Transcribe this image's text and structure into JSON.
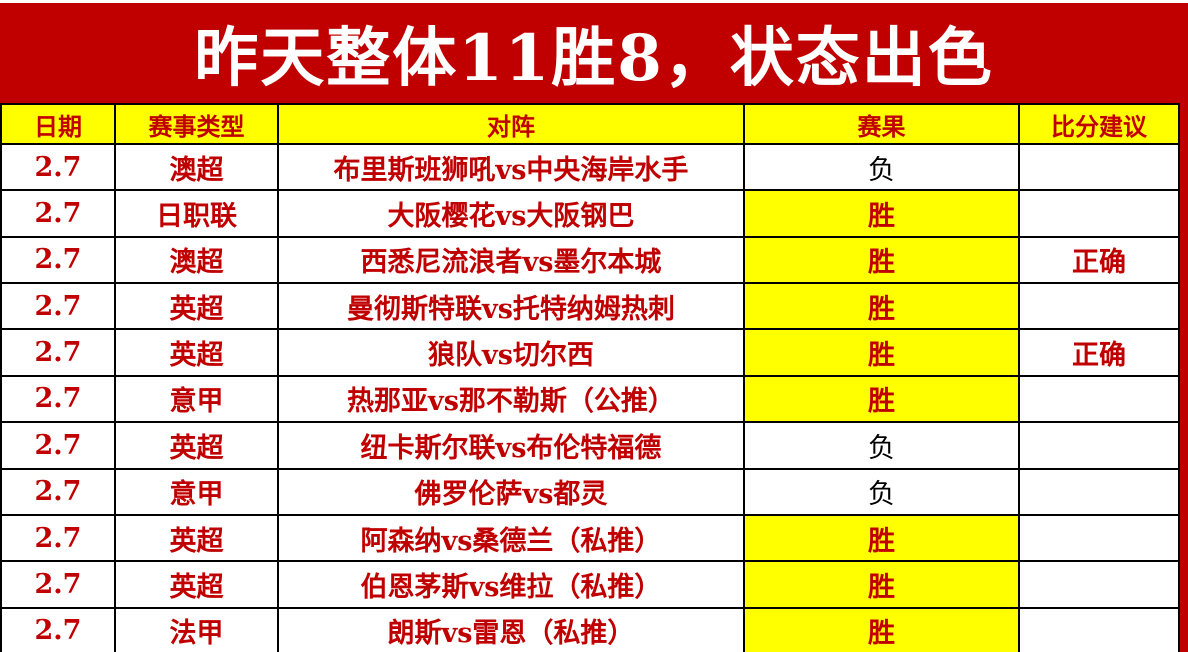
{
  "title": "昨天整体11胜8，状态出色",
  "colors": {
    "banner_red": "#c00000",
    "highlight_yellow": "#ffff00",
    "win_text": "#c00000",
    "loss_text": "#000000",
    "title_text": "#ffffff"
  },
  "table": {
    "columns": {
      "date": "日期",
      "league": "赛事类型",
      "matchup": "对阵",
      "result": "赛果",
      "suggestion": "比分建议"
    },
    "rows": [
      {
        "date": "2.7",
        "league": "澳超",
        "matchup": "布里斯班狮吼vs中央海岸水手",
        "result": "负",
        "win": false,
        "suggestion": ""
      },
      {
        "date": "2.7",
        "league": "日职联",
        "matchup": "大阪樱花vs大阪钢巴",
        "result": "胜",
        "win": true,
        "suggestion": ""
      },
      {
        "date": "2.7",
        "league": "澳超",
        "matchup": "西悉尼流浪者vs墨尔本城",
        "result": "胜",
        "win": true,
        "suggestion": "正确"
      },
      {
        "date": "2.7",
        "league": "英超",
        "matchup": "曼彻斯特联vs托特纳姆热刺",
        "result": "胜",
        "win": true,
        "suggestion": ""
      },
      {
        "date": "2.7",
        "league": "英超",
        "matchup": "狼队vs切尔西",
        "result": "胜",
        "win": true,
        "suggestion": "正确"
      },
      {
        "date": "2.7",
        "league": "意甲",
        "matchup": "热那亚vs那不勒斯（公推）",
        "result": "胜",
        "win": true,
        "suggestion": ""
      },
      {
        "date": "2.7",
        "league": "英超",
        "matchup": "纽卡斯尔联vs布伦特福德",
        "result": "负",
        "win": false,
        "suggestion": ""
      },
      {
        "date": "2.7",
        "league": "意甲",
        "matchup": "佛罗伦萨vs都灵",
        "result": "负",
        "win": false,
        "suggestion": ""
      },
      {
        "date": "2.7",
        "league": "英超",
        "matchup": "阿森纳vs桑德兰（私推）",
        "result": "胜",
        "win": true,
        "suggestion": ""
      },
      {
        "date": "2.7",
        "league": "英超",
        "matchup": "伯恩茅斯vs维拉（私推）",
        "result": "胜",
        "win": true,
        "suggestion": ""
      },
      {
        "date": "2.7",
        "league": "法甲",
        "matchup": "朗斯vs雷恩（私推）",
        "result": "胜",
        "win": true,
        "suggestion": ""
      }
    ]
  }
}
